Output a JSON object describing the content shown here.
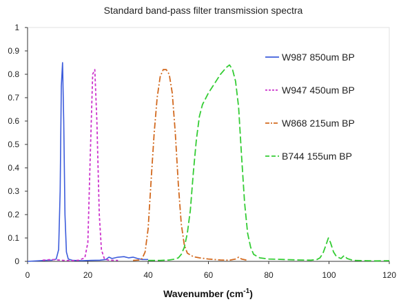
{
  "chart_data": {
    "type": "line",
    "title": "Standard band-pass filter transmission spectra",
    "xlabel": "Wavenumber (cm",
    "xlabel_sup": "-1",
    "xlabel_close": ")",
    "ylabel": "",
    "xlim": [
      0,
      120
    ],
    "ylim": [
      0,
      1
    ],
    "xticks": [
      0,
      20,
      40,
      60,
      80,
      100,
      120
    ],
    "yticks": [
      0,
      0.1,
      0.2,
      0.3,
      0.4,
      0.5,
      0.6,
      0.7,
      0.8,
      0.9,
      1
    ],
    "grid": false,
    "legend_position": "right",
    "series": [
      {
        "name": "W987 850um BP",
        "color": "#3b5bdb",
        "dash": "solid",
        "points": [
          [
            0,
            0
          ],
          [
            3,
            0.002
          ],
          [
            6,
            0.004
          ],
          [
            8,
            0.005
          ],
          [
            9.5,
            0.01
          ],
          [
            10.3,
            0.05
          ],
          [
            10.8,
            0.3
          ],
          [
            11.2,
            0.75
          ],
          [
            11.6,
            0.85
          ],
          [
            12.0,
            0.6
          ],
          [
            12.4,
            0.2
          ],
          [
            12.9,
            0.04
          ],
          [
            13.5,
            0.01
          ],
          [
            15,
            0.004
          ],
          [
            18,
            0.003
          ],
          [
            21,
            0.004
          ],
          [
            24,
            0.005
          ],
          [
            26,
            0.008
          ],
          [
            27,
            0.018
          ],
          [
            28,
            0.012
          ],
          [
            30,
            0.018
          ],
          [
            32,
            0.02
          ],
          [
            33.5,
            0.015
          ],
          [
            35,
            0.018
          ],
          [
            36.5,
            0.012
          ],
          [
            38,
            0.008
          ],
          [
            40,
            0.008
          ]
        ]
      },
      {
        "name": "W947 450um BP",
        "color": "#cc33cc",
        "dash": "4,3",
        "points": [
          [
            5,
            0.005
          ],
          [
            8,
            0.008
          ],
          [
            12,
            0.004
          ],
          [
            15,
            0.003
          ],
          [
            17,
            0.005
          ],
          [
            19,
            0.015
          ],
          [
            20,
            0.08
          ],
          [
            20.8,
            0.45
          ],
          [
            21.6,
            0.8
          ],
          [
            22.3,
            0.82
          ],
          [
            23,
            0.6
          ],
          [
            23.8,
            0.2
          ],
          [
            24.5,
            0.05
          ],
          [
            25.5,
            0.01
          ],
          [
            27,
            0.005
          ],
          [
            30,
            0.004
          ]
        ]
      },
      {
        "name": "W868 215um BP",
        "color": "#d2691e",
        "dash": "9,3,2,3",
        "points": [
          [
            35,
            0.004
          ],
          [
            37,
            0.006
          ],
          [
            38,
            0.012
          ],
          [
            39,
            0.04
          ],
          [
            40,
            0.14
          ],
          [
            41,
            0.35
          ],
          [
            42,
            0.55
          ],
          [
            43,
            0.7
          ],
          [
            44,
            0.79
          ],
          [
            45,
            0.82
          ],
          [
            46,
            0.82
          ],
          [
            47,
            0.8
          ],
          [
            48,
            0.72
          ],
          [
            49,
            0.55
          ],
          [
            50,
            0.33
          ],
          [
            51,
            0.16
          ],
          [
            52,
            0.07
          ],
          [
            53,
            0.035
          ],
          [
            55,
            0.02
          ],
          [
            57,
            0.015
          ],
          [
            60,
            0.01
          ],
          [
            64,
            0.006
          ],
          [
            67,
            0.005
          ],
          [
            69,
            0.01
          ],
          [
            70,
            0.018
          ],
          [
            71,
            0.01
          ],
          [
            73,
            0.004
          ]
        ]
      },
      {
        "name": "B744 155um BP",
        "color": "#33cc33",
        "dash": "10,4",
        "points": [
          [
            40,
            0.004
          ],
          [
            44,
            0.004
          ],
          [
            47,
            0.006
          ],
          [
            49,
            0.01
          ],
          [
            50,
            0.015
          ],
          [
            51,
            0.03
          ],
          [
            52,
            0.06
          ],
          [
            53,
            0.12
          ],
          [
            54,
            0.22
          ],
          [
            55,
            0.38
          ],
          [
            56,
            0.52
          ],
          [
            57,
            0.62
          ],
          [
            58,
            0.67
          ],
          [
            60,
            0.72
          ],
          [
            62,
            0.76
          ],
          [
            64,
            0.8
          ],
          [
            66,
            0.83
          ],
          [
            67,
            0.84
          ],
          [
            68,
            0.82
          ],
          [
            69,
            0.77
          ],
          [
            70,
            0.66
          ],
          [
            71,
            0.45
          ],
          [
            72,
            0.25
          ],
          [
            73,
            0.12
          ],
          [
            74,
            0.06
          ],
          [
            75,
            0.03
          ],
          [
            77,
            0.015
          ],
          [
            80,
            0.01
          ],
          [
            85,
            0.008
          ],
          [
            90,
            0.006
          ],
          [
            94,
            0.005
          ],
          [
            96,
            0.008
          ],
          [
            97,
            0.015
          ],
          [
            98,
            0.035
          ],
          [
            99,
            0.07
          ],
          [
            99.8,
            0.1
          ],
          [
            100.5,
            0.08
          ],
          [
            101.5,
            0.04
          ],
          [
            102.5,
            0.02
          ],
          [
            104,
            0.012
          ],
          [
            105,
            0.025
          ],
          [
            106,
            0.012
          ],
          [
            108,
            0.004
          ],
          [
            112,
            0.003
          ],
          [
            116,
            0.002
          ],
          [
            120,
            0.003
          ]
        ]
      }
    ]
  }
}
